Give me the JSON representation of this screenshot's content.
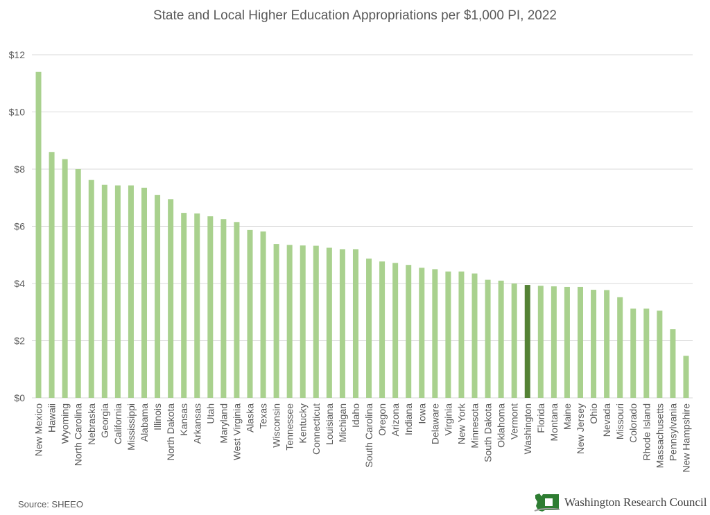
{
  "colors": {
    "bar": "#a9d18e",
    "highlight": "#548235",
    "grid": "#d9d9d9",
    "text": "#595959",
    "logo_green": "#2e7d32"
  },
  "source": "Source: SHEEO",
  "brand": {
    "name": "Washington Research Council",
    "logo_icon": "washington-state-icon"
  },
  "chart_data": {
    "type": "bar",
    "title": "State and Local Higher Education Appropriations per $1,000 PI, 2022",
    "xlabel": "",
    "ylabel": "",
    "ylim": [
      0,
      12
    ],
    "yticks": [
      0,
      2,
      4,
      6,
      8,
      10,
      12
    ],
    "ytick_labels": [
      "$0",
      "$2",
      "$4",
      "$6",
      "$8",
      "$10",
      "$12"
    ],
    "grid": true,
    "highlight_category": "Washington",
    "categories": [
      "New Mexico",
      "Hawaii",
      "Wyoming",
      "North Carolina",
      "Nebraska",
      "Georgia",
      "California",
      "Mississippi",
      "Alabama",
      "Illinois",
      "North Dakota",
      "Kansas",
      "Arkansas",
      "Utah",
      "Maryland",
      "West Virginia",
      "Alaska",
      "Texas",
      "Wisconsin",
      "Tennessee",
      "Kentucky",
      "Connecticut",
      "Louisiana",
      "Michigan",
      "Idaho",
      "South Carolina",
      "Oregon",
      "Arizona",
      "Indiana",
      "Iowa",
      "Delaware",
      "Virginia",
      "New York",
      "Minnesota",
      "South Dakota",
      "Oklahoma",
      "Vermont",
      "Washington",
      "Florida",
      "Montana",
      "Maine",
      "New Jersey",
      "Ohio",
      "Nevada",
      "Missouri",
      "Colorado",
      "Rhode Island",
      "Massachusetts",
      "Pennsylvania",
      "New Hampshire"
    ],
    "values": [
      11.4,
      8.6,
      8.35,
      8.0,
      7.62,
      7.45,
      7.43,
      7.43,
      7.35,
      7.1,
      6.95,
      6.47,
      6.45,
      6.35,
      6.25,
      6.15,
      5.87,
      5.82,
      5.38,
      5.35,
      5.33,
      5.32,
      5.25,
      5.2,
      5.2,
      4.87,
      4.77,
      4.72,
      4.65,
      4.55,
      4.5,
      4.42,
      4.42,
      4.35,
      4.13,
      4.1,
      4.0,
      3.95,
      3.92,
      3.9,
      3.88,
      3.88,
      3.78,
      3.77,
      3.52,
      3.12,
      3.12,
      3.05,
      2.4,
      1.47
    ]
  }
}
